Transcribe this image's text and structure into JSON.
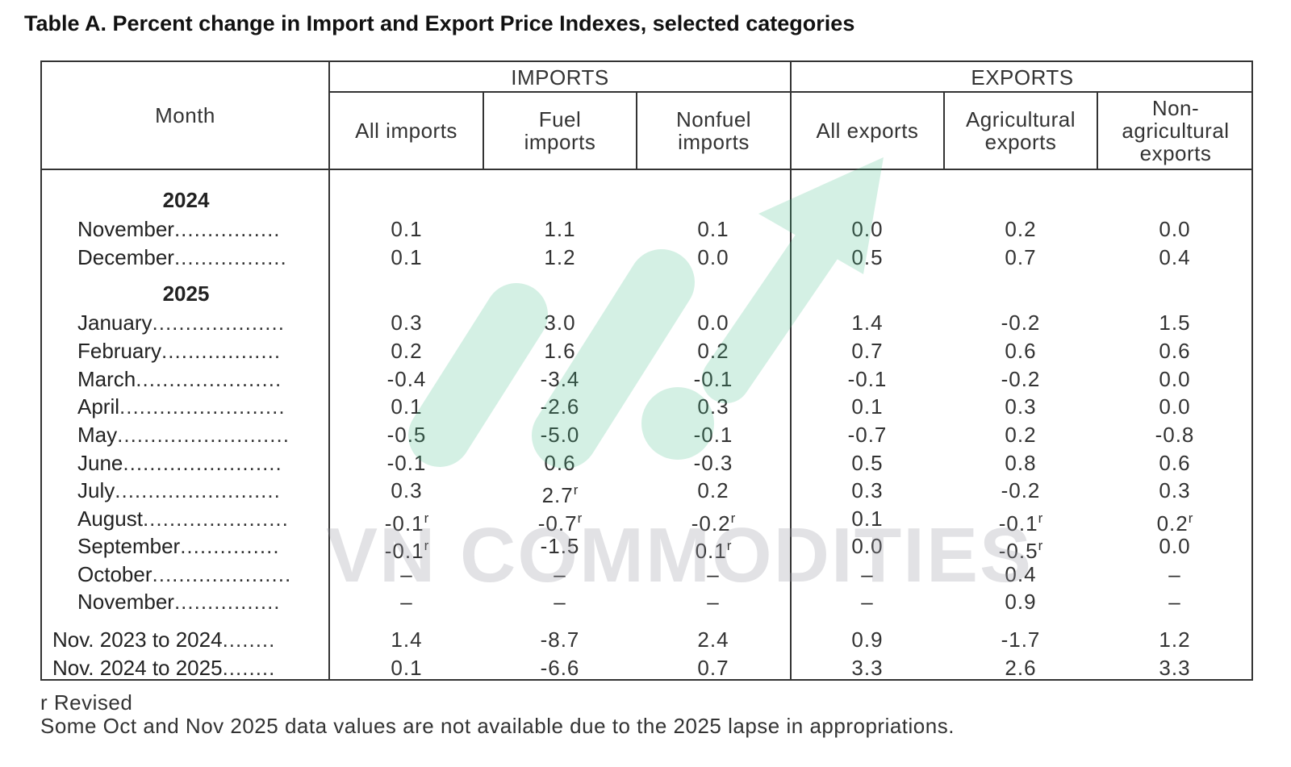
{
  "title": "Table A. Percent change in Import and Export Price Indexes, selected categories",
  "header": {
    "month": "Month",
    "imports_group": "IMPORTS",
    "exports_group": "EXPORTS",
    "columns": [
      "All imports",
      "Fuel imports",
      "Nonfuel imports",
      "All exports",
      "Agricultural exports",
      "Non-agricultural exports"
    ]
  },
  "years": [
    "2024",
    "2025"
  ],
  "rows": [
    {
      "label": "November",
      "dots": "................",
      "values": [
        "0.1",
        "1.1",
        "0.1",
        "0.0",
        "0.2",
        "0.0"
      ],
      "revised": [
        false,
        false,
        false,
        false,
        false,
        false
      ]
    },
    {
      "label": "December",
      "dots": ".................",
      "values": [
        "0.1",
        "1.2",
        "0.0",
        "0.5",
        "0.7",
        "0.4"
      ],
      "revised": [
        false,
        false,
        false,
        false,
        false,
        false
      ]
    },
    {
      "label": "January",
      "dots": "....................",
      "values": [
        "0.3",
        "3.0",
        "0.0",
        "1.4",
        "-0.2",
        "1.5"
      ],
      "revised": [
        false,
        false,
        false,
        false,
        false,
        false
      ]
    },
    {
      "label": "February",
      "dots": "..................",
      "values": [
        "0.2",
        "1.6",
        "0.2",
        "0.7",
        "0.6",
        "0.6"
      ],
      "revised": [
        false,
        false,
        false,
        false,
        false,
        false
      ]
    },
    {
      "label": "March",
      "dots": "......................",
      "values": [
        "-0.4",
        "-3.4",
        "-0.1",
        "-0.1",
        "-0.2",
        "0.0"
      ],
      "revised": [
        false,
        false,
        false,
        false,
        false,
        false
      ]
    },
    {
      "label": "April",
      "dots": ".........................",
      "values": [
        "0.1",
        "-2.6",
        "0.3",
        "0.1",
        "0.3",
        "0.0"
      ],
      "revised": [
        false,
        false,
        false,
        false,
        false,
        false
      ]
    },
    {
      "label": "May",
      "dots": "..........................",
      "values": [
        "-0.5",
        "-5.0",
        "-0.1",
        "-0.7",
        "0.2",
        "-0.8"
      ],
      "revised": [
        false,
        false,
        false,
        false,
        false,
        false
      ]
    },
    {
      "label": "June",
      "dots": "........................",
      "values": [
        "-0.1",
        "0.6",
        "-0.3",
        "0.5",
        "0.8",
        "0.6"
      ],
      "revised": [
        false,
        false,
        false,
        false,
        false,
        false
      ]
    },
    {
      "label": "July",
      "dots": ".........................",
      "values": [
        "0.3",
        "2.7",
        "0.2",
        "0.3",
        "-0.2",
        "0.3"
      ],
      "revised": [
        false,
        true,
        false,
        false,
        false,
        false
      ]
    },
    {
      "label": "August",
      "dots": "......................",
      "values": [
        "-0.1",
        "-0.7",
        "-0.2",
        "0.1",
        "-0.1",
        "0.2"
      ],
      "revised": [
        true,
        true,
        true,
        false,
        true,
        true
      ]
    },
    {
      "label": "September",
      "dots": "...............",
      "values": [
        "-0.1",
        "-1.5",
        "0.1",
        "0.0",
        "-0.5",
        "0.0"
      ],
      "revised": [
        true,
        false,
        true,
        false,
        true,
        false
      ]
    },
    {
      "label": "October",
      "dots": ".....................",
      "values": [
        "–",
        "–",
        "–",
        "–",
        "0.4",
        "–"
      ],
      "revised": [
        false,
        false,
        false,
        false,
        false,
        false
      ]
    },
    {
      "label": "November",
      "dots": "................",
      "values": [
        "–",
        "–",
        "–",
        "–",
        "0.9",
        "–"
      ],
      "revised": [
        false,
        false,
        false,
        false,
        false,
        false
      ]
    },
    {
      "label": "Nov. 2023 to 2024",
      "dots": "........",
      "values": [
        "1.4",
        "-8.7",
        "2.4",
        "0.9",
        "-1.7",
        "1.2"
      ],
      "revised": [
        false,
        false,
        false,
        false,
        false,
        false
      ]
    },
    {
      "label": "Nov. 2024 to 2025",
      "dots": "........",
      "values": [
        "0.1",
        "-6.6",
        "0.7",
        "3.3",
        "2.6",
        "3.3"
      ],
      "revised": [
        false,
        false,
        false,
        false,
        false,
        false
      ]
    }
  ],
  "revised_mark": "r",
  "notes": {
    "revised": "r Revised",
    "lapse": "Some Oct and Nov 2025 data values are not available due to the 2025 lapse in appropriations."
  },
  "watermark": {
    "text": "VN COMMODITIES",
    "color": "#3fbf88"
  }
}
